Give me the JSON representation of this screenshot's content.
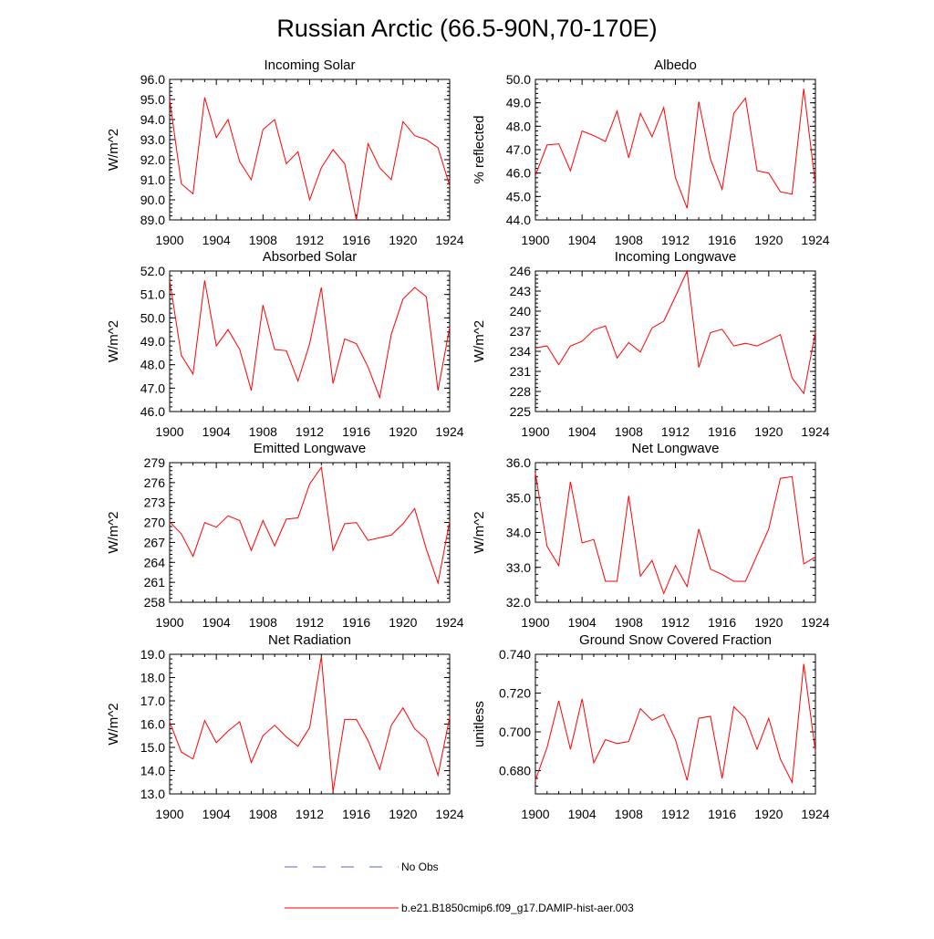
{
  "figure": {
    "title": "Russian Arctic (66.5-90N,70-170E)",
    "legend": [
      {
        "label": "No Obs",
        "color": "#5566cc",
        "dash": true
      },
      {
        "label": "b.e21.B1850cmip6.f09_g17.DAMIP-hist-aer.003",
        "color": "#ff0000",
        "dash": false
      }
    ]
  },
  "chart_data": [
    {
      "type": "line",
      "title": "Incoming Solar",
      "ylabel": "W/m^2",
      "xlim": [
        1900,
        1924
      ],
      "x_ticks": [
        1900,
        1904,
        1908,
        1912,
        1916,
        1920,
        1924
      ],
      "ylim": [
        89.0,
        96.0
      ],
      "y_ticks": [
        "96.0",
        "95.0",
        "94.0",
        "93.0",
        "92.0",
        "91.0",
        "90.0",
        "89.0"
      ],
      "x_start": 1900,
      "color": "#ff0000",
      "values": [
        95.0,
        90.8,
        90.3,
        95.1,
        93.1,
        94.0,
        91.9,
        91.0,
        93.5,
        94.0,
        91.8,
        92.4,
        90.0,
        91.6,
        92.5,
        91.8,
        89.0,
        92.8,
        91.6,
        91.0,
        93.9,
        93.2,
        93.0,
        92.6,
        90.7
      ]
    },
    {
      "type": "line",
      "title": "Albedo",
      "ylabel": "% reflected",
      "xlim": [
        1900,
        1924
      ],
      "x_ticks": [
        1900,
        1904,
        1908,
        1912,
        1916,
        1920,
        1924
      ],
      "ylim": [
        44.0,
        50.0
      ],
      "y_ticks": [
        "50.0",
        "49.0",
        "48.0",
        "47.0",
        "46.0",
        "45.0",
        "44.0"
      ],
      "x_start": 1900,
      "color": "#ff0000",
      "values": [
        45.9,
        47.2,
        47.25,
        46.1,
        47.8,
        47.6,
        47.35,
        48.65,
        46.65,
        48.55,
        47.55,
        48.8,
        45.8,
        44.5,
        49.05,
        46.6,
        45.3,
        48.55,
        49.2,
        46.1,
        46.0,
        45.2,
        45.1,
        49.6,
        45.5
      ]
    },
    {
      "type": "line",
      "title": "Absorbed Solar",
      "ylabel": "W/m^2",
      "xlim": [
        1900,
        1924
      ],
      "x_ticks": [
        1900,
        1904,
        1908,
        1912,
        1916,
        1920,
        1924
      ],
      "ylim": [
        46.0,
        52.0
      ],
      "y_ticks": [
        "52.0",
        "51.0",
        "50.0",
        "49.0",
        "48.0",
        "47.0",
        "46.0"
      ],
      "x_start": 1900,
      "color": "#ff0000",
      "values": [
        51.6,
        48.4,
        47.6,
        51.6,
        48.8,
        49.5,
        48.65,
        46.9,
        50.55,
        48.65,
        48.6,
        47.3,
        48.9,
        51.3,
        47.2,
        49.1,
        48.9,
        47.9,
        46.6,
        49.3,
        50.8,
        51.3,
        50.9,
        46.9,
        49.6
      ]
    },
    {
      "type": "line",
      "title": "Incoming Longwave",
      "ylabel": "W/m^2",
      "xlim": [
        1900,
        1924
      ],
      "x_ticks": [
        1900,
        1904,
        1908,
        1912,
        1916,
        1920,
        1924
      ],
      "ylim": [
        225,
        246
      ],
      "y_ticks": [
        "246",
        "243",
        "240",
        "237",
        "234",
        "231",
        "228",
        "225"
      ],
      "x_start": 1900,
      "color": "#ff0000",
      "values": [
        234.5,
        234.8,
        232.0,
        234.8,
        235.5,
        237.2,
        237.8,
        233.0,
        235.3,
        233.9,
        237.5,
        238.5,
        242.2,
        246.0,
        231.6,
        236.8,
        237.3,
        234.8,
        235.2,
        234.8,
        235.6,
        236.5,
        230.0,
        227.7,
        236.9
      ]
    },
    {
      "type": "line",
      "title": "Emitted Longwave",
      "ylabel": "W/m^2",
      "xlim": [
        1900,
        1924
      ],
      "x_ticks": [
        1900,
        1904,
        1908,
        1912,
        1916,
        1920,
        1924
      ],
      "ylim": [
        258,
        279
      ],
      "y_ticks": [
        "279",
        "276",
        "273",
        "270",
        "267",
        "264",
        "261",
        "258"
      ],
      "x_start": 1900,
      "color": "#ff0000",
      "values": [
        270.1,
        268.3,
        264.9,
        270.0,
        269.3,
        271.0,
        270.3,
        265.8,
        270.3,
        266.5,
        270.5,
        270.7,
        275.8,
        278.3,
        265.8,
        269.8,
        270.0,
        267.3,
        267.7,
        268.1,
        269.8,
        272.1,
        266.0,
        260.9,
        270.2
      ]
    },
    {
      "type": "line",
      "title": "Net Longwave",
      "ylabel": "W/m^2",
      "xlim": [
        1900,
        1924
      ],
      "x_ticks": [
        1900,
        1904,
        1908,
        1912,
        1916,
        1920,
        1924
      ],
      "ylim": [
        32.0,
        36.0
      ],
      "y_ticks": [
        "36.0",
        "35.0",
        "34.0",
        "33.0",
        "32.0"
      ],
      "x_start": 1900,
      "color": "#ff0000",
      "values": [
        35.7,
        33.6,
        33.05,
        35.45,
        33.7,
        33.8,
        32.6,
        32.6,
        35.05,
        32.75,
        33.2,
        32.25,
        33.05,
        32.45,
        34.1,
        32.95,
        32.8,
        32.6,
        32.6,
        33.35,
        34.1,
        35.55,
        35.6,
        33.1,
        33.3
      ]
    },
    {
      "type": "line",
      "title": "Net Radiation",
      "ylabel": "W/m^2",
      "xlim": [
        1900,
        1924
      ],
      "x_ticks": [
        1900,
        1904,
        1908,
        1912,
        1916,
        1920,
        1924
      ],
      "ylim": [
        13.0,
        19.0
      ],
      "y_ticks": [
        "19.0",
        "18.0",
        "17.0",
        "16.0",
        "15.0",
        "14.0",
        "13.0"
      ],
      "x_start": 1900,
      "color": "#ff0000",
      "values": [
        16.1,
        14.8,
        14.5,
        16.15,
        15.2,
        15.7,
        16.1,
        14.35,
        15.5,
        15.95,
        15.45,
        15.05,
        15.85,
        18.9,
        13.1,
        16.2,
        16.2,
        15.3,
        14.05,
        15.95,
        16.7,
        15.8,
        15.35,
        13.8,
        16.3
      ]
    },
    {
      "type": "line",
      "title": "Ground Snow Covered Fraction",
      "ylabel": "unitless",
      "xlim": [
        1900,
        1924
      ],
      "x_ticks": [
        1900,
        1904,
        1908,
        1912,
        1916,
        1920,
        1924
      ],
      "ylim": [
        0.668,
        0.74
      ],
      "y_ticks": [
        "0.740",
        "0.720",
        "0.700",
        "0.680"
      ],
      "x_start": 1900,
      "color": "#ff0000",
      "values": [
        0.675,
        0.692,
        0.716,
        0.691,
        0.717,
        0.684,
        0.696,
        0.694,
        0.695,
        0.712,
        0.706,
        0.709,
        0.696,
        0.675,
        0.707,
        0.708,
        0.676,
        0.713,
        0.707,
        0.691,
        0.707,
        0.686,
        0.674,
        0.735,
        0.69
      ]
    }
  ]
}
